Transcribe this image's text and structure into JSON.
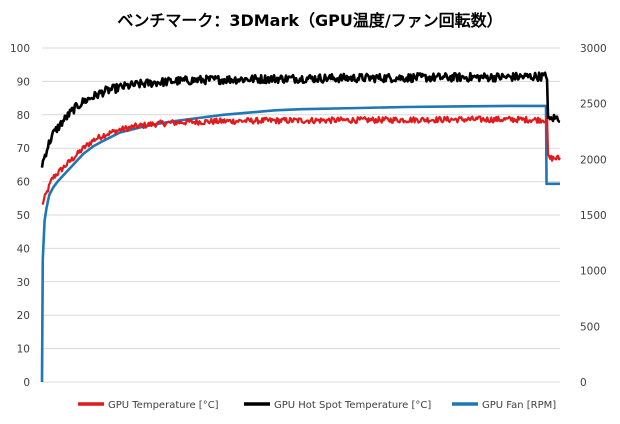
{
  "chart_data": {
    "type": "line",
    "title": "ベンチマーク：3DMark（GPU温度/ファン回転数）",
    "grid": true,
    "legend_position": "bottom",
    "y_left": {
      "range": [
        0,
        100
      ],
      "ticks": [
        "0",
        "10",
        "20",
        "30",
        "40",
        "50",
        "60",
        "70",
        "80",
        "90",
        "100"
      ]
    },
    "y_right": {
      "range": [
        0,
        3000
      ],
      "ticks": [
        "0",
        "500",
        "1000",
        "1500",
        "2000",
        "2500",
        "3000"
      ]
    },
    "x_range": [
      0,
      100
    ],
    "series": [
      {
        "name": "GPU Temperature [°C]",
        "axis": "left",
        "color": "#e31a1c",
        "x": [
          0,
          1,
          2,
          4,
          6,
          8,
          10,
          12,
          15,
          18,
          22,
          27,
          33,
          40,
          50,
          60,
          70,
          80,
          90,
          97.6,
          97.7,
          98.5,
          100
        ],
        "y": [
          53,
          57,
          61,
          64,
          67,
          70,
          72.5,
          74,
          75.5,
          76.5,
          77.3,
          77.8,
          78,
          78.2,
          78.3,
          78.4,
          78.5,
          78.6,
          78.6,
          78.5,
          67,
          67,
          67
        ]
      },
      {
        "name": "GPU Hot Spot Temperature [°C]",
        "axis": "left",
        "color": "#000000",
        "x": [
          0,
          1,
          2,
          4,
          6,
          8,
          10,
          12,
          15,
          18,
          22,
          26,
          30,
          40,
          50,
          60,
          70,
          80,
          90,
          96,
          97.6,
          97.7,
          98.5,
          100
        ],
        "y": [
          65,
          70,
          74,
          78,
          81.5,
          84,
          85.5,
          87,
          88.2,
          89,
          89.7,
          90.1,
          90.4,
          90.7,
          90.9,
          91,
          91.1,
          91.2,
          91.3,
          91.5,
          91.5,
          78,
          79,
          79
        ]
      },
      {
        "name": "GPU Fan [RPM]",
        "axis": "right",
        "color": "#1f77b4",
        "x": [
          0,
          0.15,
          0.5,
          0.9,
          1.4,
          2.2,
          3,
          4,
          6,
          8,
          10,
          12,
          15,
          20,
          25,
          30,
          35,
          40,
          45,
          50,
          60,
          70,
          80,
          90,
          97.3,
          97.4,
          100
        ],
        "y": [
          0,
          1100,
          1450,
          1570,
          1680,
          1750,
          1800,
          1850,
          1950,
          2050,
          2120,
          2170,
          2240,
          2300,
          2340,
          2370,
          2400,
          2420,
          2440,
          2450,
          2460,
          2470,
          2475,
          2480,
          2480,
          1780,
          1780
        ]
      }
    ]
  }
}
